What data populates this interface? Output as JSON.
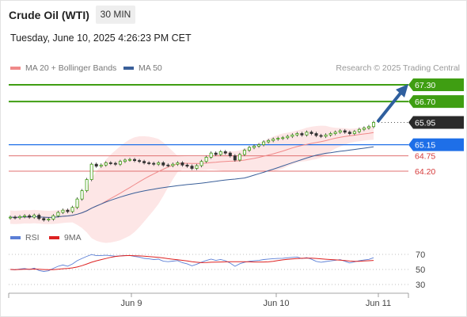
{
  "header": {
    "title": "Crude Oil (WTI)",
    "timeframe": "30 MIN",
    "datetime": "Tuesday, June 10, 2025 4:26:23 PM CET"
  },
  "legend": {
    "ma20": "MA 20 + Bollinger Bands",
    "ma50": "MA 50",
    "ma20_color": "#f08a8a",
    "ma50_color": "#3a5f99"
  },
  "credit": "Research © 2025 Trading Central",
  "rsi_legend": {
    "rsi": "RSI",
    "ma9": "9MA",
    "rsi_color": "#5b7fd6",
    "ma9_color": "#dd2222"
  },
  "price_labels": [
    {
      "value": "67.30",
      "bg": "#3f9e12",
      "fg": "#ffffff"
    },
    {
      "value": "66.70",
      "bg": "#3f9e12",
      "fg": "#ffffff"
    },
    {
      "value": "65.95",
      "bg": "#2a2a2a",
      "fg": "#ffffff"
    },
    {
      "value": "65.15",
      "bg": "#1e6fe8",
      "fg": "#ffffff"
    },
    {
      "value": "64.75",
      "bg": "",
      "fg": "#d63a3a"
    },
    {
      "value": "64.20",
      "bg": "",
      "fg": "#d63a3a"
    }
  ],
  "x_ticks": [
    "Jun 9",
    "Jun 10",
    "Jun 11"
  ],
  "rsi_ticks": [
    "70",
    "50",
    "30"
  ],
  "chart_data": {
    "type": "line",
    "levels": {
      "resistance": [
        67.3,
        66.7
      ],
      "last": 65.95,
      "pivot": 65.15,
      "support": [
        64.75,
        64.2
      ]
    },
    "close_series": [
      62.55,
      62.53,
      62.57,
      62.6,
      62.55,
      62.62,
      62.5,
      62.45,
      62.48,
      62.6,
      62.72,
      62.8,
      62.75,
      62.9,
      63.2,
      63.5,
      63.9,
      64.45,
      64.38,
      64.42,
      64.5,
      64.48,
      64.45,
      64.55,
      64.6,
      64.62,
      64.58,
      64.55,
      64.5,
      64.48,
      64.45,
      64.5,
      64.42,
      64.4,
      64.45,
      64.5,
      64.42,
      64.38,
      64.3,
      64.4,
      64.55,
      64.7,
      64.85,
      64.8,
      64.9,
      64.85,
      64.75,
      64.6,
      64.8,
      64.95,
      65.05,
      65.1,
      65.15,
      65.25,
      65.3,
      65.35,
      65.38,
      65.4,
      65.45,
      65.5,
      65.55,
      65.5,
      65.6,
      65.55,
      65.48,
      65.45,
      65.5,
      65.55,
      65.6,
      65.65,
      65.6,
      65.55,
      65.62,
      65.7,
      65.75,
      65.8,
      65.95
    ],
    "series": [
      {
        "name": "MA 20 + Bollinger Bands"
      },
      {
        "name": "MA 50"
      }
    ],
    "rsi": {
      "series": [
        {
          "name": "RSI"
        },
        {
          "name": "9MA"
        }
      ],
      "ticks": [
        70,
        50,
        30
      ]
    },
    "x_labels": [
      "Jun 9",
      "Jun 10",
      "Jun 11"
    ]
  }
}
